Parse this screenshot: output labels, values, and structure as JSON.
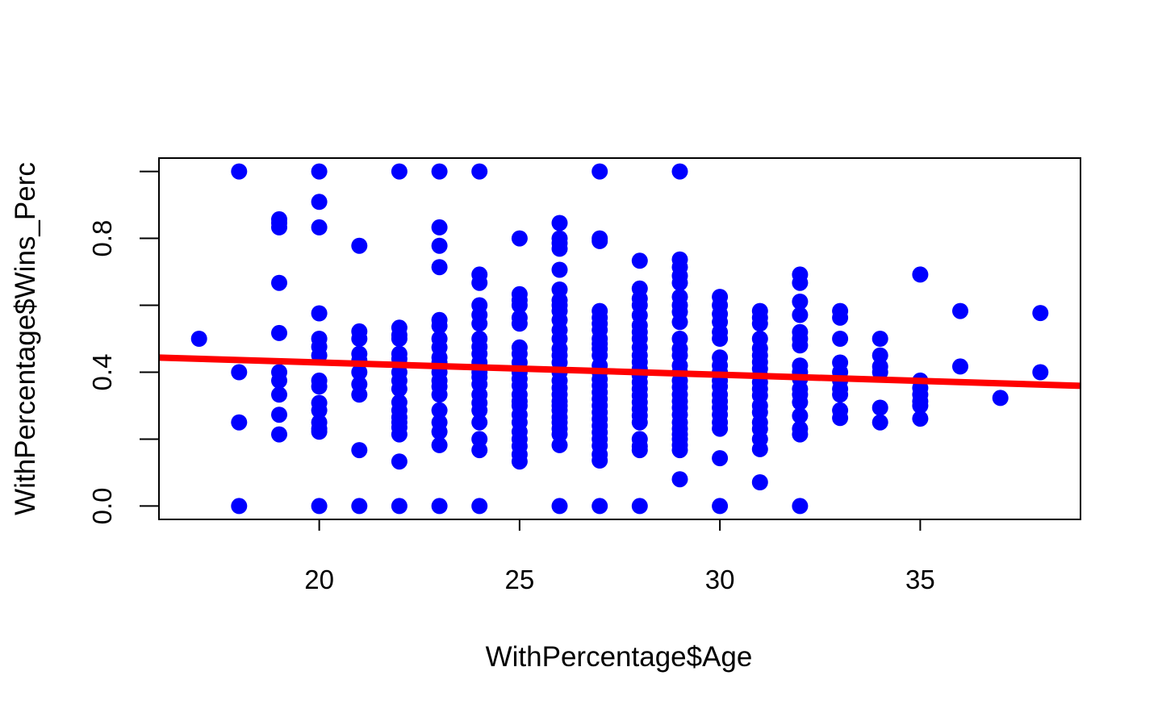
{
  "chart_data": {
    "type": "scatter",
    "title": "",
    "xlabel": "WithPercentage$Age",
    "ylabel": "WithPercentage$Wins_Perc",
    "xlim": [
      16,
      39
    ],
    "ylim": [
      -0.04,
      1.04
    ],
    "x_ticks": [
      20,
      25,
      30,
      35
    ],
    "x_tick_labels": [
      "20",
      "25",
      "30",
      "35"
    ],
    "y_ticks": [
      0.0,
      0.2,
      0.4,
      0.6,
      0.8,
      1.0
    ],
    "y_tick_labels": [
      "0.0",
      "",
      "0.4",
      "",
      "0.8",
      ""
    ],
    "grid": false,
    "legend": "none",
    "point_color": "#0000ff",
    "line_color": "#ff0000",
    "points": [
      [
        17,
        0.5
      ],
      [
        18,
        1.0
      ],
      [
        18,
        0.4
      ],
      [
        18,
        0.25
      ],
      [
        18,
        0.0
      ],
      [
        19,
        0.857
      ],
      [
        19,
        0.846
      ],
      [
        19,
        0.833
      ],
      [
        19,
        0.667
      ],
      [
        19,
        0.517
      ],
      [
        19,
        0.4
      ],
      [
        19,
        0.375
      ],
      [
        19,
        0.333
      ],
      [
        19,
        0.273
      ],
      [
        19,
        0.214
      ],
      [
        20,
        1.0
      ],
      [
        20,
        0.909
      ],
      [
        20,
        0.833
      ],
      [
        20,
        0.576
      ],
      [
        20,
        0.5
      ],
      [
        20,
        0.476
      ],
      [
        20,
        0.45
      ],
      [
        20,
        0.375
      ],
      [
        20,
        0.357
      ],
      [
        20,
        0.308
      ],
      [
        20,
        0.286
      ],
      [
        20,
        0.25
      ],
      [
        20,
        0.231
      ],
      [
        20,
        0.222
      ],
      [
        20,
        0.0
      ],
      [
        21,
        0.778
      ],
      [
        21,
        0.522
      ],
      [
        21,
        0.5
      ],
      [
        21,
        0.455
      ],
      [
        21,
        0.435
      ],
      [
        21,
        0.4
      ],
      [
        21,
        0.364
      ],
      [
        21,
        0.333
      ],
      [
        21,
        0.167
      ],
      [
        21,
        0.0
      ],
      [
        22,
        1.0
      ],
      [
        22,
        0.533
      ],
      [
        22,
        0.511
      ],
      [
        22,
        0.5
      ],
      [
        22,
        0.455
      ],
      [
        22,
        0.44
      ],
      [
        22,
        0.425
      ],
      [
        22,
        0.4
      ],
      [
        22,
        0.375
      ],
      [
        22,
        0.35
      ],
      [
        22,
        0.31
      ],
      [
        22,
        0.286
      ],
      [
        22,
        0.265
      ],
      [
        22,
        0.25
      ],
      [
        22,
        0.235
      ],
      [
        22,
        0.214
      ],
      [
        22,
        0.133
      ],
      [
        22,
        0.0
      ],
      [
        23,
        1.0
      ],
      [
        23,
        0.833
      ],
      [
        23,
        0.778
      ],
      [
        23,
        0.714
      ],
      [
        23,
        0.556
      ],
      [
        23,
        0.538
      ],
      [
        23,
        0.5
      ],
      [
        23,
        0.474
      ],
      [
        23,
        0.444
      ],
      [
        23,
        0.429
      ],
      [
        23,
        0.4
      ],
      [
        23,
        0.375
      ],
      [
        23,
        0.357
      ],
      [
        23,
        0.333
      ],
      [
        23,
        0.286
      ],
      [
        23,
        0.25
      ],
      [
        23,
        0.222
      ],
      [
        23,
        0.182
      ],
      [
        23,
        0.0
      ],
      [
        24,
        1.0
      ],
      [
        24,
        0.692
      ],
      [
        24,
        0.667
      ],
      [
        24,
        0.6
      ],
      [
        24,
        0.571
      ],
      [
        24,
        0.545
      ],
      [
        24,
        0.5
      ],
      [
        24,
        0.476
      ],
      [
        24,
        0.455
      ],
      [
        24,
        0.429
      ],
      [
        24,
        0.4
      ],
      [
        24,
        0.385
      ],
      [
        24,
        0.364
      ],
      [
        24,
        0.333
      ],
      [
        24,
        0.308
      ],
      [
        24,
        0.286
      ],
      [
        24,
        0.25
      ],
      [
        24,
        0.2
      ],
      [
        24,
        0.167
      ],
      [
        24,
        0.0
      ],
      [
        25,
        0.8
      ],
      [
        25,
        0.633
      ],
      [
        25,
        0.615
      ],
      [
        25,
        0.6
      ],
      [
        25,
        0.563
      ],
      [
        25,
        0.545
      ],
      [
        25,
        0.474
      ],
      [
        25,
        0.455
      ],
      [
        25,
        0.429
      ],
      [
        25,
        0.4
      ],
      [
        25,
        0.38
      ],
      [
        25,
        0.36
      ],
      [
        25,
        0.333
      ],
      [
        25,
        0.313
      ],
      [
        25,
        0.3
      ],
      [
        25,
        0.273
      ],
      [
        25,
        0.25
      ],
      [
        25,
        0.222
      ],
      [
        25,
        0.2
      ],
      [
        25,
        0.179
      ],
      [
        25,
        0.154
      ],
      [
        25,
        0.133
      ],
      [
        26,
        0.846
      ],
      [
        26,
        0.8
      ],
      [
        26,
        0.786
      ],
      [
        26,
        0.769
      ],
      [
        26,
        0.706
      ],
      [
        26,
        0.647
      ],
      [
        26,
        0.615
      ],
      [
        26,
        0.6
      ],
      [
        26,
        0.583
      ],
      [
        26,
        0.556
      ],
      [
        26,
        0.526
      ],
      [
        26,
        0.5
      ],
      [
        26,
        0.47
      ],
      [
        26,
        0.45
      ],
      [
        26,
        0.429
      ],
      [
        26,
        0.4
      ],
      [
        26,
        0.375
      ],
      [
        26,
        0.353
      ],
      [
        26,
        0.333
      ],
      [
        26,
        0.313
      ],
      [
        26,
        0.3
      ],
      [
        26,
        0.286
      ],
      [
        26,
        0.265
      ],
      [
        26,
        0.25
      ],
      [
        26,
        0.231
      ],
      [
        26,
        0.214
      ],
      [
        26,
        0.182
      ],
      [
        26,
        0.0
      ],
      [
        27,
        1.0
      ],
      [
        27,
        0.8
      ],
      [
        27,
        0.792
      ],
      [
        27,
        0.583
      ],
      [
        27,
        0.563
      ],
      [
        27,
        0.545
      ],
      [
        27,
        0.526
      ],
      [
        27,
        0.5
      ],
      [
        27,
        0.485
      ],
      [
        27,
        0.47
      ],
      [
        27,
        0.45
      ],
      [
        27,
        0.42
      ],
      [
        27,
        0.4
      ],
      [
        27,
        0.379
      ],
      [
        27,
        0.36
      ],
      [
        27,
        0.34
      ],
      [
        27,
        0.32
      ],
      [
        27,
        0.3
      ],
      [
        27,
        0.28
      ],
      [
        27,
        0.26
      ],
      [
        27,
        0.24
      ],
      [
        27,
        0.22
      ],
      [
        27,
        0.2
      ],
      [
        27,
        0.18
      ],
      [
        27,
        0.154
      ],
      [
        27,
        0.136
      ],
      [
        27,
        0.0
      ],
      [
        28,
        0.733
      ],
      [
        28,
        0.65
      ],
      [
        28,
        0.62
      ],
      [
        28,
        0.6
      ],
      [
        28,
        0.57
      ],
      [
        28,
        0.54
      ],
      [
        28,
        0.52
      ],
      [
        28,
        0.5
      ],
      [
        28,
        0.474
      ],
      [
        28,
        0.45
      ],
      [
        28,
        0.43
      ],
      [
        28,
        0.41
      ],
      [
        28,
        0.39
      ],
      [
        28,
        0.37
      ],
      [
        28,
        0.35
      ],
      [
        28,
        0.33
      ],
      [
        28,
        0.31
      ],
      [
        28,
        0.29
      ],
      [
        28,
        0.27
      ],
      [
        28,
        0.25
      ],
      [
        28,
        0.2
      ],
      [
        28,
        0.179
      ],
      [
        28,
        0.167
      ],
      [
        28,
        0.0
      ],
      [
        29,
        1.0
      ],
      [
        29,
        0.737
      ],
      [
        29,
        0.714
      ],
      [
        29,
        0.688
      ],
      [
        29,
        0.667
      ],
      [
        29,
        0.625
      ],
      [
        29,
        0.6
      ],
      [
        29,
        0.58
      ],
      [
        29,
        0.55
      ],
      [
        29,
        0.5
      ],
      [
        29,
        0.47
      ],
      [
        29,
        0.45
      ],
      [
        29,
        0.42
      ],
      [
        29,
        0.4
      ],
      [
        29,
        0.375
      ],
      [
        29,
        0.355
      ],
      [
        29,
        0.333
      ],
      [
        29,
        0.313
      ],
      [
        29,
        0.294
      ],
      [
        29,
        0.273
      ],
      [
        29,
        0.25
      ],
      [
        29,
        0.231
      ],
      [
        29,
        0.214
      ],
      [
        29,
        0.2
      ],
      [
        29,
        0.182
      ],
      [
        29,
        0.167
      ],
      [
        29,
        0.08
      ],
      [
        30,
        0.625
      ],
      [
        30,
        0.6
      ],
      [
        30,
        0.574
      ],
      [
        30,
        0.55
      ],
      [
        30,
        0.52
      ],
      [
        30,
        0.5
      ],
      [
        30,
        0.444
      ],
      [
        30,
        0.42
      ],
      [
        30,
        0.4
      ],
      [
        30,
        0.375
      ],
      [
        30,
        0.357
      ],
      [
        30,
        0.333
      ],
      [
        30,
        0.313
      ],
      [
        30,
        0.294
      ],
      [
        30,
        0.273
      ],
      [
        30,
        0.25
      ],
      [
        30,
        0.231
      ],
      [
        30,
        0.143
      ],
      [
        30,
        0.0
      ],
      [
        31,
        0.583
      ],
      [
        31,
        0.563
      ],
      [
        31,
        0.545
      ],
      [
        31,
        0.5
      ],
      [
        31,
        0.471
      ],
      [
        31,
        0.45
      ],
      [
        31,
        0.43
      ],
      [
        31,
        0.41
      ],
      [
        31,
        0.39
      ],
      [
        31,
        0.37
      ],
      [
        31,
        0.35
      ],
      [
        31,
        0.33
      ],
      [
        31,
        0.3
      ],
      [
        31,
        0.28
      ],
      [
        31,
        0.25
      ],
      [
        31,
        0.23
      ],
      [
        31,
        0.2
      ],
      [
        31,
        0.17
      ],
      [
        31,
        0.071
      ],
      [
        32,
        0.692
      ],
      [
        32,
        0.667
      ],
      [
        32,
        0.611
      ],
      [
        32,
        0.571
      ],
      [
        32,
        0.52
      ],
      [
        32,
        0.5
      ],
      [
        32,
        0.48
      ],
      [
        32,
        0.42
      ],
      [
        32,
        0.4
      ],
      [
        32,
        0.38
      ],
      [
        32,
        0.35
      ],
      [
        32,
        0.333
      ],
      [
        32,
        0.31
      ],
      [
        32,
        0.27
      ],
      [
        32,
        0.231
      ],
      [
        32,
        0.214
      ],
      [
        32,
        0.0
      ],
      [
        33,
        0.583
      ],
      [
        33,
        0.563
      ],
      [
        33,
        0.5
      ],
      [
        33,
        0.429
      ],
      [
        33,
        0.4
      ],
      [
        33,
        0.375
      ],
      [
        33,
        0.35
      ],
      [
        33,
        0.333
      ],
      [
        33,
        0.286
      ],
      [
        33,
        0.263
      ],
      [
        34,
        0.5
      ],
      [
        34,
        0.45
      ],
      [
        34,
        0.417
      ],
      [
        34,
        0.4
      ],
      [
        34,
        0.294
      ],
      [
        34,
        0.25
      ],
      [
        35,
        0.692
      ],
      [
        35,
        0.375
      ],
      [
        35,
        0.353
      ],
      [
        35,
        0.333
      ],
      [
        35,
        0.313
      ],
      [
        35,
        0.3
      ],
      [
        35,
        0.261
      ],
      [
        36,
        0.583
      ],
      [
        36,
        0.417
      ],
      [
        37,
        0.323
      ],
      [
        38,
        0.577
      ],
      [
        38,
        0.4
      ]
    ],
    "regression_line": {
      "intercept": 0.5025,
      "slope": -0.00367
    }
  }
}
